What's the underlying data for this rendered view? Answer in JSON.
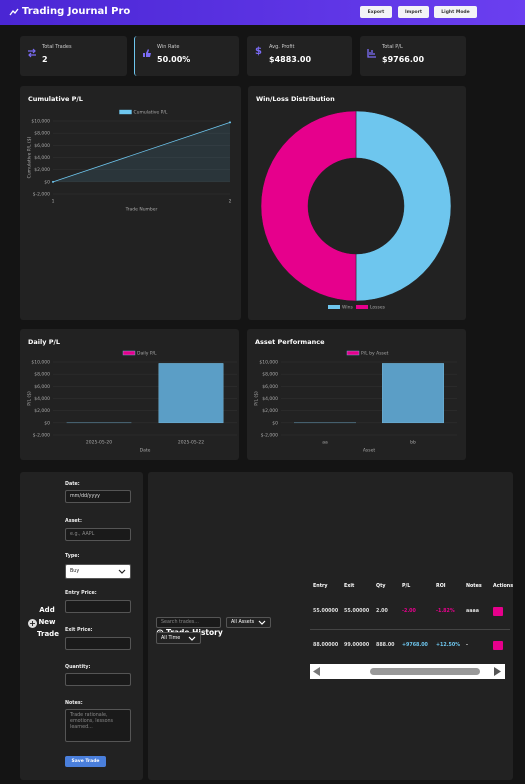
{
  "header": {
    "title": "Trading Journal Pro",
    "buttons": [
      "Export",
      "Import",
      "Light Mode"
    ]
  },
  "stats": [
    {
      "label": "Total Trades",
      "value": "2"
    },
    {
      "label": "Win Rate",
      "value": "50.00%"
    },
    {
      "label": "Avg. Profit",
      "value": "$4883.00"
    },
    {
      "label": "Total P/L",
      "value": "$9766.00"
    }
  ],
  "chart_data": [
    {
      "type": "line",
      "title": "Cumulative P/L",
      "x": [
        1,
        2
      ],
      "xlim": [
        1,
        2
      ],
      "xticks": [
        1,
        2
      ],
      "series": [
        {
          "name": "Cumulative P/L",
          "color": "#6ec6ee",
          "values": [
            -2,
            9766
          ]
        }
      ],
      "ylim": [
        -2000,
        10000
      ],
      "yticks": [
        {
          "value": -2000,
          "label": "$-2,000"
        },
        {
          "value": 0,
          "label": "$0"
        },
        {
          "value": 2000,
          "label": "$2,000"
        },
        {
          "value": 4000,
          "label": "$4,000"
        },
        {
          "value": 6000,
          "label": "$6,000"
        },
        {
          "value": 8000,
          "label": "$8,000"
        },
        {
          "value": 10000,
          "label": "$10,000"
        }
      ],
      "xlabel": "Trade Number",
      "ylabel": "Cumulative P/L ($)",
      "grid": true
    },
    {
      "type": "doughnut",
      "title": "Win/Loss Distribution",
      "categories": [
        "Wins",
        "Losses"
      ],
      "values": [
        1,
        1
      ],
      "colors": [
        "#6ec6ee",
        "#e6008c"
      ]
    },
    {
      "type": "bar",
      "title": "Daily P/L",
      "categories": [
        "2025-05-20",
        "2025-05-22"
      ],
      "series": [
        {
          "name": "Daily P/L",
          "colors": [
            "#e6008c",
            "#5b9ec6"
          ],
          "values": [
            -2,
            9768
          ]
        }
      ],
      "ylim": [
        -2000,
        10000
      ],
      "yticks": [
        {
          "value": -2000,
          "label": "$-2,000"
        },
        {
          "value": 0,
          "label": "$0"
        },
        {
          "value": 2000,
          "label": "$2,000"
        },
        {
          "value": 4000,
          "label": "$4,000"
        },
        {
          "value": 6000,
          "label": "$6,000"
        },
        {
          "value": 8000,
          "label": "$8,000"
        },
        {
          "value": 10000,
          "label": "$10,000"
        }
      ],
      "xlabel": "Date",
      "ylabel": "P/L ($)",
      "grid": true
    },
    {
      "type": "bar",
      "title": "Asset Performance",
      "categories": [
        "aa",
        "bb"
      ],
      "series": [
        {
          "name": "P/L by Asset",
          "colors": [
            "#e6008c",
            "#5b9ec6"
          ],
          "values": [
            -2,
            9768
          ]
        }
      ],
      "ylim": [
        -2000,
        10000
      ],
      "yticks": [
        {
          "value": -2000,
          "label": "$-2,000"
        },
        {
          "value": 0,
          "label": "$0"
        },
        {
          "value": 2000,
          "label": "$2,000"
        },
        {
          "value": 4000,
          "label": "$4,000"
        },
        {
          "value": 6000,
          "label": "$6,000"
        },
        {
          "value": 8000,
          "label": "$8,000"
        },
        {
          "value": 10000,
          "label": "$10,000"
        }
      ],
      "xlabel": "Asset",
      "ylabel": "P/L ($)",
      "grid": true
    }
  ],
  "form": {
    "title": "Add New Trade",
    "fields": [
      {
        "label": "Date:",
        "placeholder": "mm/dd/yyyy"
      },
      {
        "label": "Asset:",
        "placeholder": "e.g., AAPL"
      },
      {
        "label": "Type:",
        "value": "Buy"
      },
      {
        "label": "Entry Price:"
      },
      {
        "label": "Exit Price:"
      },
      {
        "label": "Quantity:"
      },
      {
        "label": "Notes:",
        "placeholder": "Trade rationale, emotions, lessons learned..."
      }
    ],
    "button": "Save Trade"
  },
  "history": {
    "title": "Trade History",
    "search_placeholder": "Search trades...",
    "filters": [
      "All Assets",
      "All Time"
    ],
    "table": {
      "headers": [
        "Entry",
        "Exit",
        "Qty",
        "P/L",
        "ROI",
        "Notes",
        "Actions"
      ],
      "rows": [
        [
          "55.00000",
          "55.00000",
          "2.00",
          "-2.00",
          "-1.82%",
          "aaaa"
        ],
        [
          "88.00000",
          "99.00000",
          "888.00",
          "+9768.00",
          "+12.50%",
          "-"
        ]
      ]
    }
  }
}
